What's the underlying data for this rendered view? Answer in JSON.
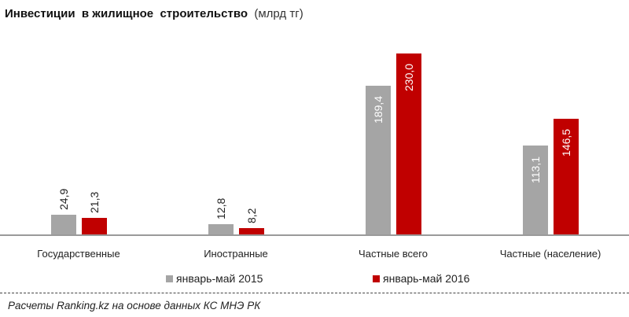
{
  "title": {
    "main": "Инвестиции  в жилищное  строительство",
    "unit": "(млрд тг)"
  },
  "legend": [
    {
      "label": "январь-май 2015",
      "color": "#a5a5a5"
    },
    {
      "label": "январь-май 2016",
      "color": "#c00000"
    }
  ],
  "source": "Расчеты Ranking.kz на основе данных  КС МНЭ РК",
  "colors": {
    "series_2015": "#a5a5a5",
    "series_2016": "#c00000",
    "axis": "#9a9a9a"
  },
  "chart_data": {
    "type": "bar",
    "title": "Инвестиции в жилищное строительство (млрд тг)",
    "xlabel": "",
    "ylabel": "",
    "categories": [
      "Государственные",
      "Иностранные",
      "Частные всего",
      "Частные (население)"
    ],
    "series": [
      {
        "name": "январь-май 2015",
        "color": "#a5a5a5",
        "values": [
          24.9,
          12.8,
          189.4,
          113.1
        ],
        "labels": [
          "24,9",
          "12,8",
          "189,4",
          "113,1"
        ]
      },
      {
        "name": "январь-май 2016",
        "color": "#c00000",
        "values": [
          21.3,
          8.2,
          230.0,
          146.5
        ],
        "labels": [
          "21,3",
          "8,2",
          "230,0",
          "146,5"
        ]
      }
    ],
    "ylim": [
      0,
      230
    ],
    "grid": false,
    "legend_position": "bottom",
    "value_labels": "rotated-vertical"
  }
}
